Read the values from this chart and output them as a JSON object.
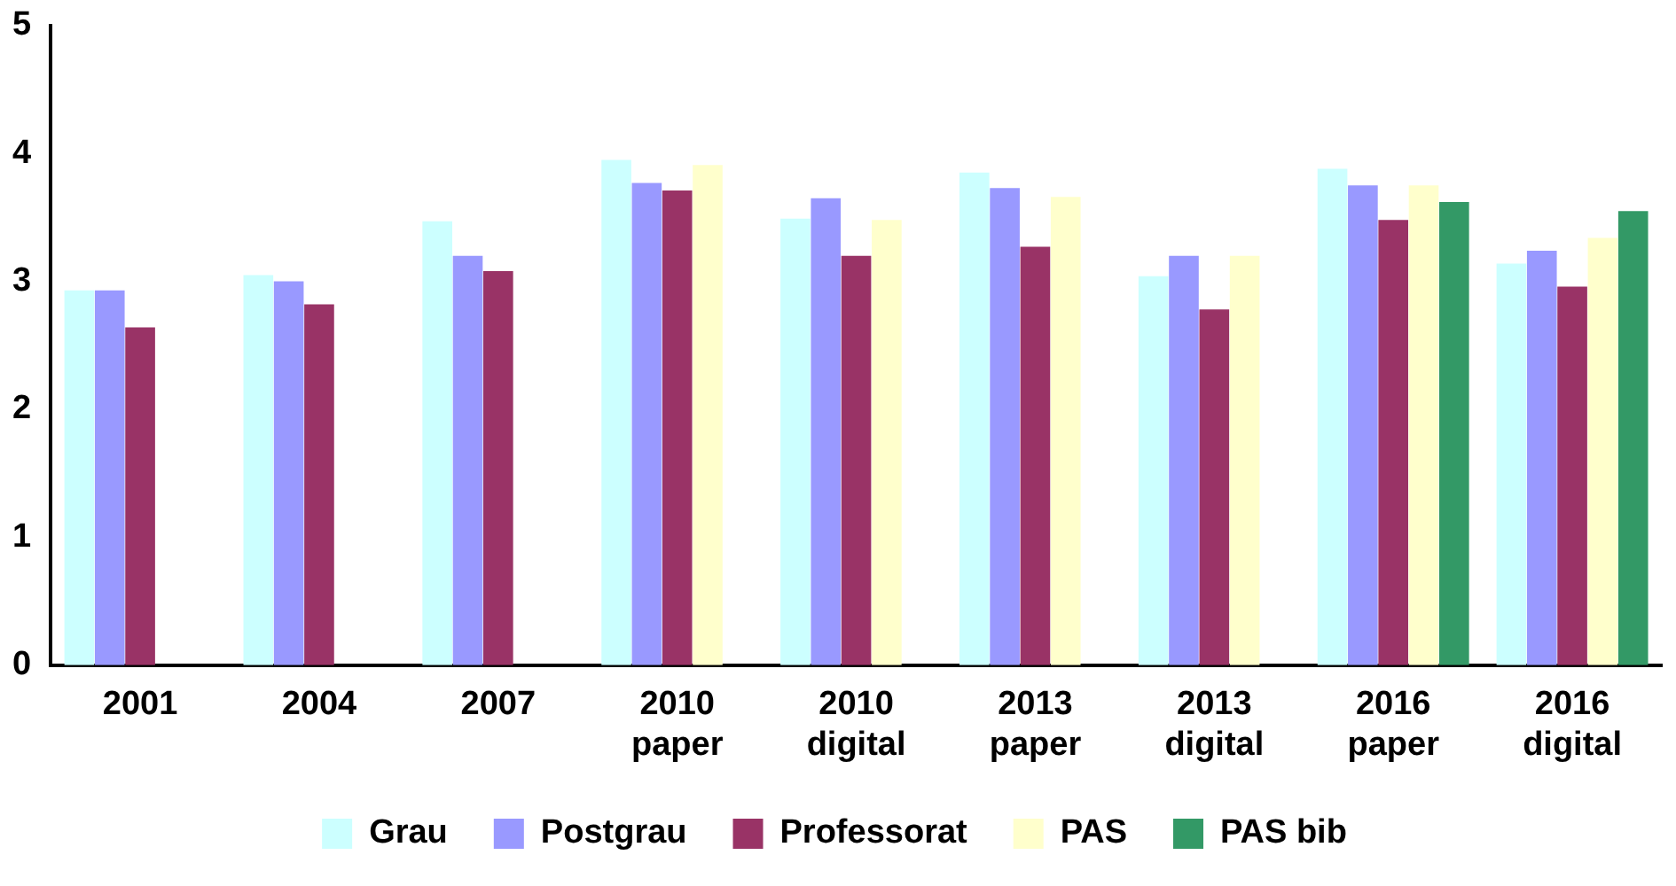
{
  "chart_data": {
    "type": "bar",
    "categories": [
      "2001",
      "2004",
      "2007",
      "2010 paper",
      "2010 digital",
      "2013 paper",
      "2013 digital",
      "2016 paper",
      "2016 digital"
    ],
    "series": [
      {
        "name": "Grau",
        "color": "#ccffff",
        "values": [
          2.93,
          3.05,
          3.47,
          3.95,
          3.49,
          3.85,
          3.04,
          3.88,
          3.14
        ]
      },
      {
        "name": "Postgrau",
        "color": "#9999ff",
        "values": [
          2.93,
          3.0,
          3.2,
          3.77,
          3.65,
          3.73,
          3.2,
          3.75,
          3.24
        ]
      },
      {
        "name": "Professorat",
        "color": "#993366",
        "values": [
          2.64,
          2.82,
          3.08,
          3.71,
          3.2,
          3.27,
          2.78,
          3.48,
          2.96
        ]
      },
      {
        "name": "PAS",
        "color": "#ffffcc",
        "values": [
          null,
          null,
          null,
          3.91,
          3.48,
          3.66,
          3.2,
          3.75,
          3.34
        ]
      },
      {
        "name": "PAS bib",
        "color": "#339966",
        "values": [
          null,
          null,
          null,
          null,
          null,
          null,
          null,
          3.62,
          3.55
        ]
      }
    ],
    "ylim": [
      0,
      5
    ],
    "yticks": [
      0,
      1,
      2,
      3,
      4,
      5
    ],
    "grid": false,
    "legend": "bottom"
  }
}
